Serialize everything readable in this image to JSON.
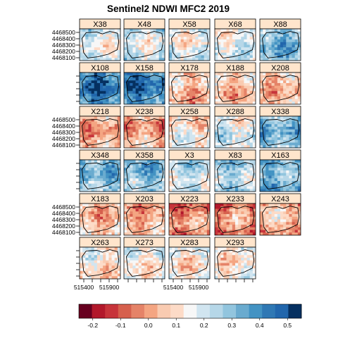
{
  "chart_data": {
    "type": "heatmap",
    "title": "Sentinel2 NDWI MFC2 2019",
    "panel_layout": {
      "columns": 5,
      "rows": 6
    },
    "y_ticks": [
      "4468500",
      "4468400",
      "4468300",
      "4468200",
      "4468100"
    ],
    "x_ticks": [
      "515400",
      "515900"
    ],
    "colorbar": {
      "min": -0.25,
      "max": 0.55,
      "ticks": [
        -0.2,
        -0.1,
        0.0,
        0.1,
        0.2,
        0.3,
        0.4,
        0.5
      ],
      "tick_labels": [
        "-0.2",
        "-0.1",
        "0.0",
        "0.1",
        "0.2",
        "0.3",
        "0.4",
        "0.5"
      ],
      "colors": [
        "#67001f",
        "#b2182b",
        "#c7343b",
        "#d6604d",
        "#e58368",
        "#f4a582",
        "#f9cbb1",
        "#fddbc7",
        "#f7f7f7",
        "#d1e5f0",
        "#b6d7e8",
        "#92c5de",
        "#6aabcf",
        "#4393c3",
        "#2f78b4",
        "#2166ac",
        "#053061"
      ]
    },
    "panels": [
      {
        "label": "X38",
        "mean_ndwi": 0.18
      },
      {
        "label": "X48",
        "mean_ndwi": 0.19
      },
      {
        "label": "X58",
        "mean_ndwi": 0.17
      },
      {
        "label": "X68",
        "mean_ndwi": 0.17
      },
      {
        "label": "X88",
        "mean_ndwi": 0.32
      },
      {
        "label": "X108",
        "mean_ndwi": 0.42
      },
      {
        "label": "X158",
        "mean_ndwi": 0.42
      },
      {
        "label": "X178",
        "mean_ndwi": 0.05
      },
      {
        "label": "X188",
        "mean_ndwi": 0.05
      },
      {
        "label": "X208",
        "mean_ndwi": 0.05
      },
      {
        "label": "X218",
        "mean_ndwi": 0.02
      },
      {
        "label": "X238",
        "mean_ndwi": 0.02
      },
      {
        "label": "X258",
        "mean_ndwi": 0.12
      },
      {
        "label": "X288",
        "mean_ndwi": 0.18
      },
      {
        "label": "X338",
        "mean_ndwi": 0.3
      },
      {
        "label": "X348",
        "mean_ndwi": 0.3
      },
      {
        "label": "X358",
        "mean_ndwi": 0.3
      },
      {
        "label": "X3",
        "mean_ndwi": 0.22
      },
      {
        "label": "X83",
        "mean_ndwi": 0.26
      },
      {
        "label": "X163",
        "mean_ndwi": 0.32
      },
      {
        "label": "X183",
        "mean_ndwi": 0.04
      },
      {
        "label": "X203",
        "mean_ndwi": 0.02
      },
      {
        "label": "X223",
        "mean_ndwi": -0.02
      },
      {
        "label": "X233",
        "mean_ndwi": -0.02
      },
      {
        "label": "X243",
        "mean_ndwi": 0.04
      },
      {
        "label": "X263",
        "mean_ndwi": 0.12
      },
      {
        "label": "X273",
        "mean_ndwi": 0.14
      },
      {
        "label": "X283",
        "mean_ndwi": 0.12
      },
      {
        "label": "X293",
        "mean_ndwi": 0.12
      }
    ]
  }
}
